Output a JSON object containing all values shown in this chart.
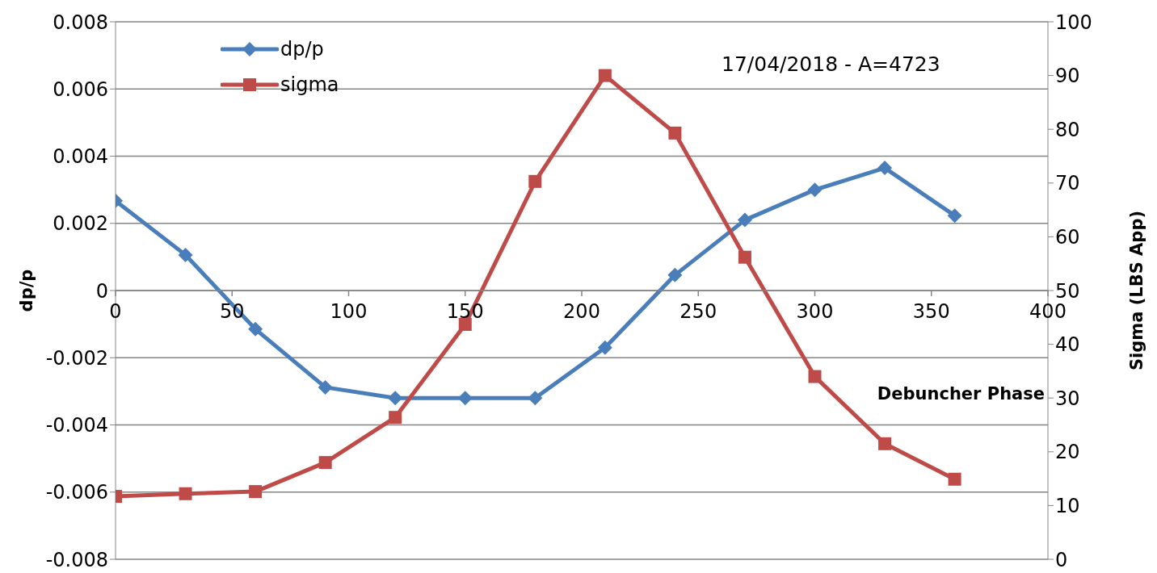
{
  "chart_data": {
    "type": "line",
    "xlabel": "Debuncher Phase",
    "ylabel": "dp/p",
    "y2label": "Sigma (LBS App)",
    "annotations": [
      "17/04/2018 - A=4723"
    ],
    "x": [
      0,
      30,
      60,
      90,
      120,
      150,
      180,
      210,
      240,
      270,
      300,
      330,
      360
    ],
    "series": [
      {
        "name": "dp/p",
        "color": "#4a7ebb",
        "marker": "diamond",
        "values": [
          0.00267,
          0.00106,
          -0.00115,
          -0.00288,
          -0.0032,
          -0.0032,
          -0.0032,
          -0.0017,
          0.00046,
          0.0021,
          0.003,
          0.00365,
          0.00223
        ]
      },
      {
        "name": "sigma",
        "color": "#be4b48",
        "marker": "square",
        "axis": "y2",
        "values": [
          11.7,
          12.2,
          12.6,
          18,
          26.4,
          43.7,
          70.3,
          90,
          79.3,
          56.2,
          34,
          21.5,
          14.9
        ]
      }
    ],
    "xlim": [
      0,
      400
    ],
    "xticks": [
      0,
      50,
      100,
      150,
      200,
      250,
      300,
      350,
      400
    ],
    "ylim": [
      -0.008,
      0.008
    ],
    "yticks": [
      -0.008,
      -0.006,
      -0.004,
      -0.002,
      0,
      0.002,
      0.004,
      0.006,
      0.008
    ],
    "y2lim": [
      0,
      100
    ],
    "y2ticks": [
      0,
      10,
      20,
      30,
      40,
      50,
      60,
      70,
      80,
      90,
      100
    ],
    "grid": "y",
    "legend": "top left",
    "line_style": "solid"
  }
}
